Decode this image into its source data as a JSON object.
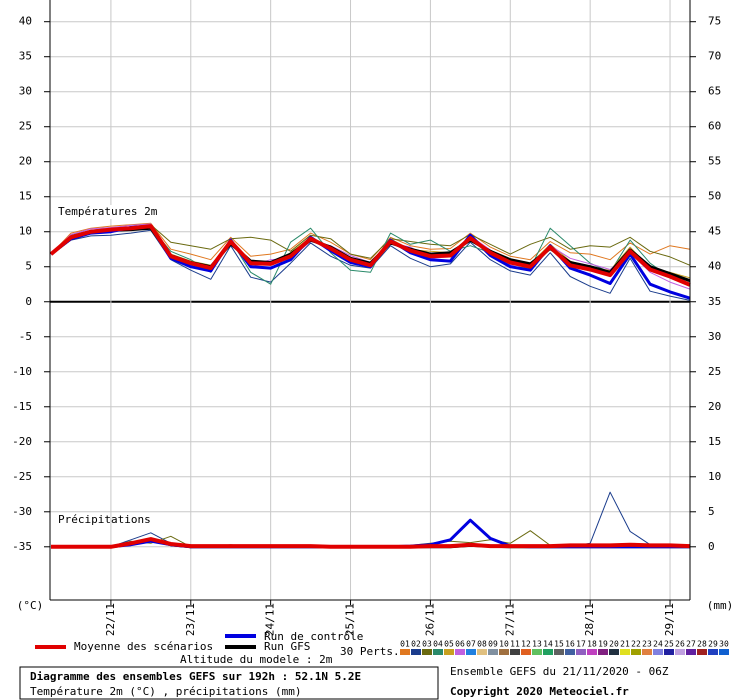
{
  "chart_data": {
    "type": "line",
    "panel_labels": [
      "Températures 2m",
      "Précipitations"
    ],
    "y_unit": "(°C)",
    "y2_unit": "(mm)",
    "x": [
      0,
      6,
      12,
      18,
      24,
      30,
      36,
      42,
      48,
      54,
      60,
      66,
      72,
      78,
      84,
      90,
      96,
      102,
      108,
      114,
      120,
      126,
      132,
      138,
      144,
      150,
      156,
      162,
      168,
      174,
      180,
      186,
      192
    ],
    "xlim": [
      0,
      192
    ],
    "xticks": [
      {
        "value": 18,
        "label": "22/11"
      },
      {
        "value": 42,
        "label": "23/11"
      },
      {
        "value": 66,
        "label": "24/11"
      },
      {
        "value": 90,
        "label": "25/11"
      },
      {
        "value": 114,
        "label": "26/11"
      },
      {
        "value": 138,
        "label": "27/11"
      },
      {
        "value": 162,
        "label": "28/11"
      },
      {
        "value": 186,
        "label": "29/11"
      }
    ],
    "ylim": [
      -42.6,
      43.1
    ],
    "yticks": [
      40,
      35,
      30,
      25,
      20,
      15,
      10,
      5,
      0,
      -5,
      -10,
      -15,
      -20,
      -25,
      -30,
      -35
    ],
    "y2lim": [
      -7.6,
      78.1
    ],
    "y2ticks": [
      75,
      70,
      65,
      60,
      55,
      50,
      45,
      40,
      35,
      30,
      25,
      20,
      15,
      10,
      5,
      0
    ],
    "grid": true,
    "series": [
      {
        "name": "Moyenne des scénarios",
        "color": "#e00000",
        "temperature": [
          6.8,
          9.2,
          10,
          10.3,
          10.5,
          10.8,
          6.5,
          5.5,
          4.8,
          8.6,
          5.5,
          5.4,
          6.5,
          9,
          7.6,
          6,
          5.2,
          8.6,
          7.3,
          6.5,
          6.6,
          9.1,
          7,
          5.6,
          5,
          7.8,
          5.2,
          4.6,
          3.8,
          7.2,
          4.6,
          3.6,
          2.4
        ],
        "precipitation": [
          0,
          0,
          0,
          0,
          0.5,
          1.1,
          0.4,
          0.1,
          0.1,
          0.1,
          0.1,
          0.1,
          0.1,
          0.1,
          0,
          0,
          0,
          0,
          0,
          0.1,
          0.1,
          0.3,
          0.1,
          0.1,
          0.1,
          0.1,
          0.2,
          0.2,
          0.2,
          0.3,
          0.2,
          0.2,
          0.1
        ]
      },
      {
        "name": "Run de contrôle",
        "color": "#0000e0",
        "temperature": [
          6.8,
          9,
          9.8,
          10,
          10.6,
          10.8,
          6.2,
          5,
          4.4,
          8.8,
          5,
          4.8,
          6,
          9.2,
          7.3,
          5.6,
          5,
          8.8,
          7,
          6,
          5.8,
          9.5,
          6.6,
          5,
          4.5,
          8,
          4.8,
          3.8,
          2.6,
          6.8,
          2.5,
          1.4,
          0.5
        ],
        "precipitation": [
          0,
          0,
          0,
          0,
          0.3,
          0.8,
          0.3,
          0,
          0,
          0,
          0,
          0,
          0,
          0,
          0,
          0,
          0,
          0,
          0.1,
          0.3,
          1,
          3.8,
          1.2,
          0.1,
          0,
          0,
          0,
          0,
          0,
          0,
          0,
          0,
          0
        ]
      },
      {
        "name": "Run GFS",
        "color": "#000000",
        "temperature": [
          6.8,
          9,
          9.9,
          10.2,
          10.3,
          10.5,
          6.6,
          5.6,
          5,
          8.3,
          5.8,
          5.6,
          6.8,
          8.8,
          7.8,
          6.2,
          5.5,
          8.4,
          7.5,
          6.8,
          7,
          8.8,
          7.2,
          6,
          5.4,
          7.6,
          5.6,
          5,
          4.2,
          7.4,
          5,
          4,
          3
        ],
        "precipitation": [
          0,
          0,
          0,
          0,
          0.4,
          1,
          0.3,
          0,
          0,
          0,
          0,
          0,
          0,
          0,
          0,
          0,
          0,
          0,
          0,
          0,
          0,
          0.2,
          0.1,
          0,
          0,
          0,
          0,
          0,
          0,
          0,
          0,
          0,
          0
        ]
      }
    ],
    "members": {
      "label": "30 Perts.",
      "items": [
        {
          "name": "01",
          "color": "#e07820",
          "temperature": [
            6.8,
            9.8,
            10.5,
            10.8,
            11,
            11.2,
            7.5,
            6.8,
            6,
            9.2,
            6.5,
            6.8,
            7.5,
            9.8,
            8.5,
            6.8,
            6,
            9.2,
            8,
            7.5,
            7.6,
            9.8,
            7.8,
            6.5,
            6,
            8.6,
            7,
            6.8,
            6,
            8.4,
            6.8,
            8,
            7.5
          ]
        },
        {
          "name": "02",
          "color": "#1a3c8c",
          "temperature": [
            6.8,
            8.8,
            9.4,
            9.5,
            9.8,
            10.2,
            6,
            4.5,
            3.2,
            8,
            3.5,
            2.8,
            5.5,
            8.4,
            6.5,
            5.2,
            4.8,
            8,
            6.2,
            5,
            5.4,
            8.5,
            6,
            4.4,
            3.8,
            7,
            3.6,
            2.2,
            1.2,
            6.2,
            1.5,
            0.8,
            0.2
          ],
          "precipitation": [
            0,
            0,
            0,
            0,
            1,
            2,
            0.5,
            0,
            0,
            0,
            0,
            0,
            0,
            0,
            0,
            0,
            0,
            0,
            0,
            0,
            0.2,
            0.3,
            0.1,
            0,
            0,
            0,
            0,
            0.5,
            7.8,
            2.2,
            0.3,
            0.1,
            0
          ]
        },
        {
          "name": "03",
          "color": "#6a6a10",
          "temperature": [
            6.8,
            9.5,
            10.2,
            10.5,
            10.7,
            11,
            8.5,
            8,
            7.5,
            9,
            9.2,
            8.8,
            7.2,
            9.5,
            9,
            6.8,
            6.2,
            9,
            8.6,
            8.2,
            8,
            9.6,
            8.2,
            6.8,
            8.2,
            9.2,
            7.5,
            8,
            7.8,
            9.2,
            7.2,
            6.4,
            5.2
          ],
          "precipitation": [
            0,
            0,
            0,
            0,
            0.8,
            0.5,
            1.5,
            0,
            0,
            0.3,
            0,
            0,
            0,
            0,
            0,
            0,
            0,
            0,
            0.2,
            0.5,
            0.8,
            0.6,
            1,
            0.5,
            2.3,
            0.2,
            0,
            0,
            0,
            0,
            0,
            0,
            0
          ]
        },
        {
          "name": "04",
          "color": "#2a8a6a",
          "temperature": [
            6.8,
            9.2,
            9.8,
            10.2,
            10.4,
            10.6,
            7.2,
            6,
            4.2,
            8.8,
            4.2,
            2.5,
            8.5,
            10.5,
            7,
            4.5,
            4.2,
            9.8,
            8.2,
            8.8,
            7.2,
            8,
            7,
            5,
            4.8,
            10.5,
            8,
            5.5,
            4.2,
            8.8,
            5.5,
            3.5,
            2.5
          ]
        },
        {
          "name": "05",
          "color": "#c8a020",
          "temperature": [
            6.8,
            9.4,
            10,
            10.2,
            10.4,
            10.6,
            6.8,
            5.8,
            5.2,
            8.4,
            5.5,
            5.2,
            7,
            9.2,
            7.8,
            6.2,
            5.4,
            9,
            7.4,
            7.2,
            7,
            9.2,
            6.8,
            5.8,
            5.4,
            8.2,
            5.8,
            4.8,
            4.5,
            7.8,
            4.8,
            4.2,
            3.4
          ]
        },
        {
          "name": "06",
          "color": "#c060e0",
          "temperature": [
            6.8,
            9.6,
            10.4,
            10.6,
            10.9,
            11.1,
            6.2,
            5,
            4.6,
            9,
            5.2,
            6,
            6.2,
            8.6,
            8,
            6.6,
            5.6,
            8.4,
            7.8,
            6.2,
            6.4,
            9.4,
            7.4,
            5.2,
            5.2,
            8,
            6.2,
            5.4,
            4.6,
            7,
            4.2,
            2.8,
            1.8
          ]
        },
        {
          "name": "07",
          "color": "#2080e0"
        },
        {
          "name": "08",
          "color": "#e0c080"
        },
        {
          "name": "09",
          "color": "#8090a0"
        },
        {
          "name": "10",
          "color": "#a07040"
        },
        {
          "name": "11",
          "color": "#404040"
        },
        {
          "name": "12",
          "color": "#e06020"
        },
        {
          "name": "13",
          "color": "#60c060"
        },
        {
          "name": "14",
          "color": "#20a060"
        },
        {
          "name": "15",
          "color": "#606060"
        },
        {
          "name": "16",
          "color": "#4060a0"
        },
        {
          "name": "17",
          "color": "#9060c0"
        },
        {
          "name": "18",
          "color": "#c040c0"
        },
        {
          "name": "19",
          "color": "#802080"
        },
        {
          "name": "20",
          "color": "#203040"
        },
        {
          "name": "21",
          "color": "#e0e020"
        },
        {
          "name": "22",
          "color": "#a0a000"
        },
        {
          "name": "23",
          "color": "#e08040"
        },
        {
          "name": "24",
          "color": "#8080e0"
        },
        {
          "name": "25",
          "color": "#2020a0"
        },
        {
          "name": "26",
          "color": "#c0a0e0"
        },
        {
          "name": "27",
          "color": "#6020a0"
        },
        {
          "name": "28",
          "color": "#a02020"
        },
        {
          "name": "29",
          "color": "#2040c0"
        },
        {
          "name": "30",
          "color": "#1060d0"
        }
      ]
    },
    "altitude": "Altitude du modele : 2m",
    "info_title": "Diagramme des ensembles GEFS sur 192h : 52.1N 5.2E",
    "info_subtitle": "Température 2m (°C) , précipitations (mm)",
    "run": "Ensemble GEFS du 21/11/2020 - 06Z",
    "copyright": "Copyright 2020 Meteociel.fr"
  }
}
